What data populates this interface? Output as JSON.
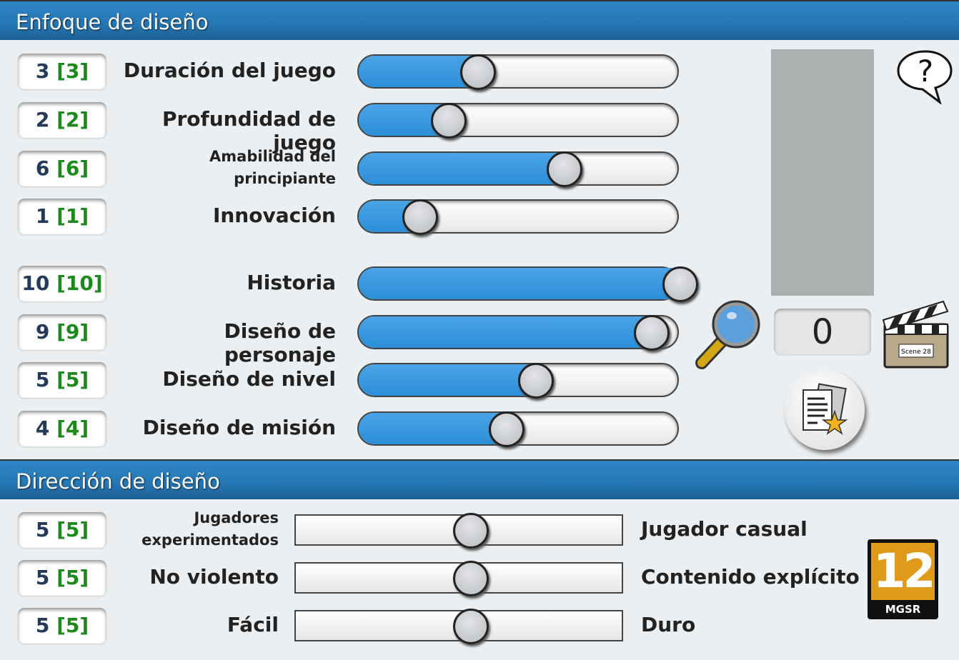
{
  "focus": {
    "title": "Enfoque de diseño",
    "rows": [
      {
        "label": "Duración del juego",
        "value": "3",
        "bracket": "[3]",
        "level": 3
      },
      {
        "label": "Profundidad de juego",
        "value": "2",
        "bracket": "[2]",
        "level": 2
      },
      {
        "label": "Amabilidad del principiante",
        "value": "6",
        "bracket": "[6]",
        "level": 6
      },
      {
        "label": "Innovación",
        "value": "1",
        "bracket": "[1]",
        "level": 1
      },
      {
        "label": "Historia",
        "value": "10",
        "bracket": "[10]",
        "level": 10
      },
      {
        "label": "Diseño de personaje",
        "value": "9",
        "bracket": "[9]",
        "level": 9
      },
      {
        "label": "Diseño de nivel",
        "value": "5",
        "bracket": "[5]",
        "level": 5
      },
      {
        "label": "Diseño de misión",
        "value": "4",
        "bracket": "[4]",
        "level": 4
      }
    ],
    "slider_max": 10
  },
  "side": {
    "counter": "0",
    "clapper_text": "Scene 28",
    "help": "?"
  },
  "direction": {
    "title": "Dirección de diseño",
    "rows": [
      {
        "left": "Jugadores experimentados",
        "right": "Jugador casual",
        "value": "5",
        "bracket": "[5]",
        "level": 5
      },
      {
        "left": "No violento",
        "right": "Contenido explícito",
        "value": "5",
        "bracket": "[5]",
        "level": 5
      },
      {
        "left": "Fácil",
        "right": "Duro",
        "value": "5",
        "bracket": "[5]",
        "level": 5
      }
    ]
  },
  "rating": {
    "age": "12",
    "label": "MGSR"
  },
  "colors": {
    "accent": "#2c8fd8",
    "header": "#2577b4",
    "bracket": "#1b8a1b",
    "rating": "#e09a1a"
  }
}
